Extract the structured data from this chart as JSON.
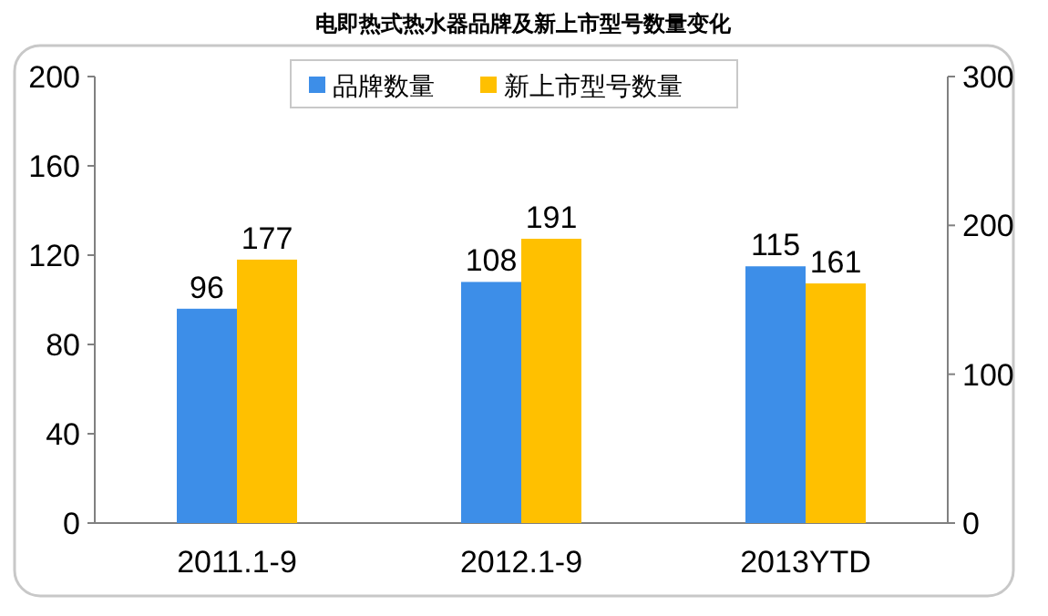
{
  "chart_data": {
    "type": "bar",
    "title": "电即热式热水器品牌及新上市型号数量变化",
    "categories": [
      "2011.1-9",
      "2012.1-9",
      "2013YTD"
    ],
    "series": [
      {
        "name": "品牌数量",
        "color": "#3d8ee8",
        "values": [
          96,
          108,
          115
        ]
      },
      {
        "name": "新上市型号数量",
        "color": "#ffc000",
        "values": [
          177,
          191,
          161
        ],
        "axis": "y2"
      }
    ],
    "ylim": [
      0,
      200
    ],
    "yticks": [
      0,
      40,
      80,
      120,
      160,
      200
    ],
    "y2lim": [
      0,
      300
    ],
    "y2ticks": [
      0,
      100,
      200,
      300
    ],
    "data_labels": true,
    "legend": "top"
  }
}
